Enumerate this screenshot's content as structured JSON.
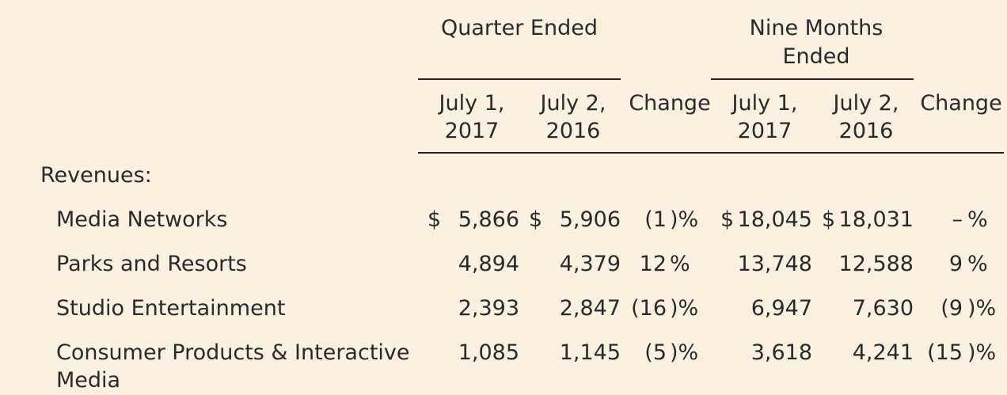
{
  "header": {
    "quarter_group": "Quarter Ended",
    "nine_months_line1": "Nine Months",
    "nine_months_line2": "Ended",
    "cols": {
      "q_2017_l1": "July 1,",
      "q_2017_l2": "2017",
      "q_2016_l1": "July 2,",
      "q_2016_l2": "2016",
      "q_change": "Change",
      "n_2017_l1": "July 1,",
      "n_2017_l2": "2017",
      "n_2016_l1": "July 2,",
      "n_2016_l2": "2016",
      "n_change": "Change"
    }
  },
  "section_label": "Revenues:",
  "currency_symbol": "$",
  "rows": [
    {
      "label": "Media Networks",
      "q2017": "5,866",
      "q2016": "5,906",
      "qchg_num": "(1",
      "qchg_pct": ")%",
      "n2017": "18,045",
      "n2016": "18,031",
      "nchg_num": "–",
      "nchg_pct": "%"
    },
    {
      "label": "Parks and Resorts",
      "q2017": "4,894",
      "q2016": "4,379",
      "qchg_num": "12",
      "qchg_pct": "%",
      "n2017": "13,748",
      "n2016": "12,588",
      "nchg_num": "9",
      "nchg_pct": "%"
    },
    {
      "label": "Studio Entertainment",
      "q2017": "2,393",
      "q2016": "2,847",
      "qchg_num": "(16",
      "qchg_pct": ")%",
      "n2017": "6,947",
      "n2016": "7,630",
      "nchg_num": "(9",
      "nchg_pct": ")%"
    },
    {
      "label_line1": "Consumer Products & Interactive",
      "label_line2": "Media",
      "q2017": "1,085",
      "q2016": "1,145",
      "qchg_num": "(5",
      "qchg_pct": ")%",
      "n2017": "3,618",
      "n2016": "4,241",
      "nchg_num": "(15",
      "nchg_pct": ")%"
    }
  ]
}
